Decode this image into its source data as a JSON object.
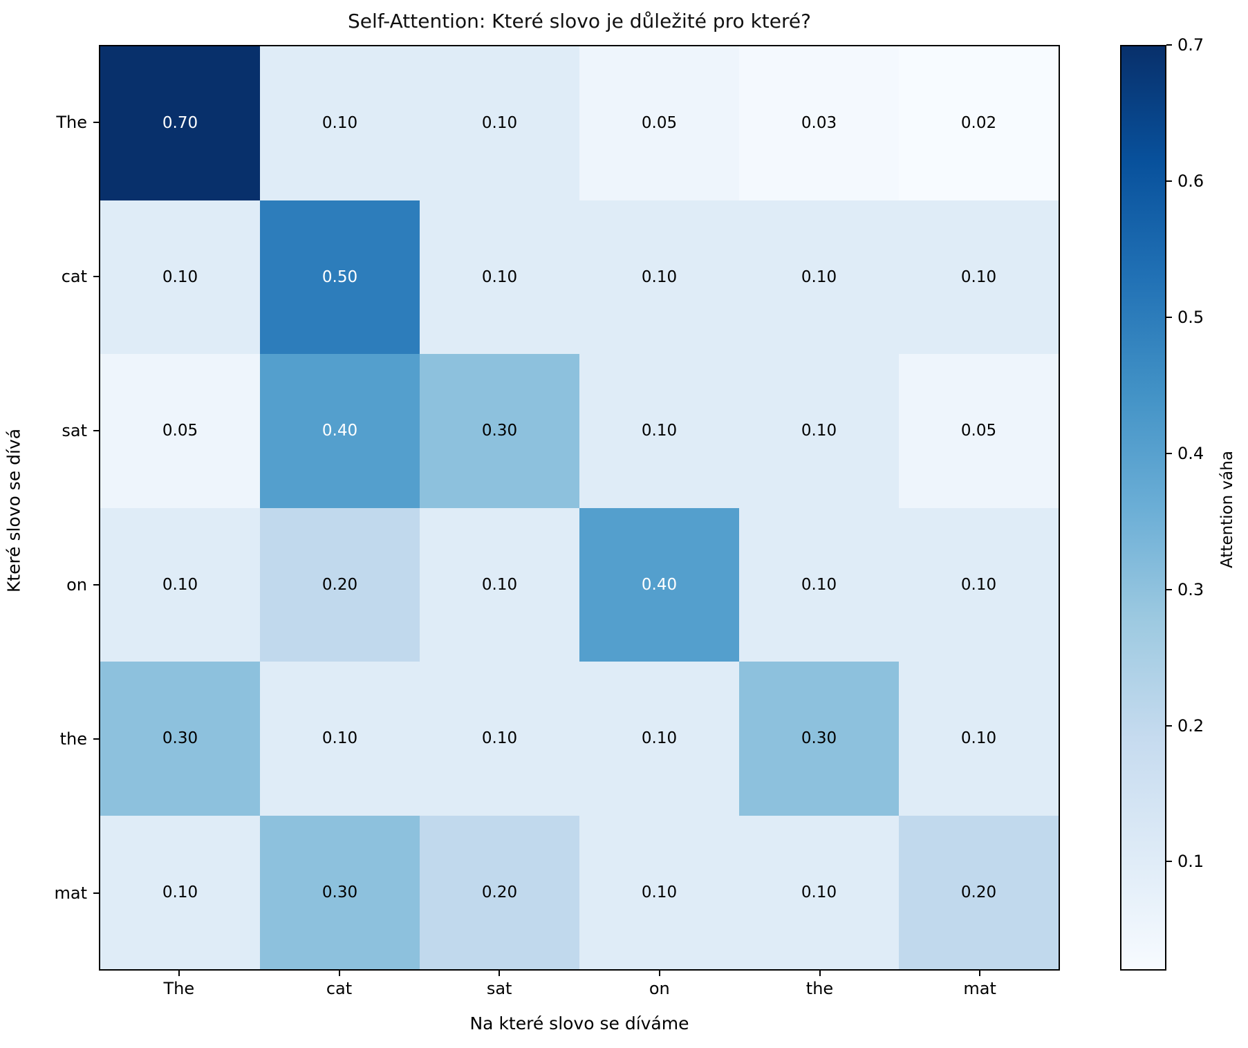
{
  "title": "Self-Attention: Které slovo je důležité pro které?",
  "chart_data": {
    "type": "heatmap",
    "title": "Self-Attention: Které slovo je důležité pro které?",
    "xlabel": "Na které slovo se díváme",
    "ylabel": "Které slovo se dívá",
    "x_categories": [
      "The",
      "cat",
      "sat",
      "on",
      "the",
      "mat"
    ],
    "y_categories": [
      "The",
      "cat",
      "sat",
      "on",
      "the",
      "mat"
    ],
    "values": [
      [
        0.7,
        0.1,
        0.1,
        0.05,
        0.03,
        0.02
      ],
      [
        0.1,
        0.5,
        0.1,
        0.1,
        0.1,
        0.1
      ],
      [
        0.05,
        0.4,
        0.3,
        0.1,
        0.1,
        0.05
      ],
      [
        0.1,
        0.2,
        0.1,
        0.4,
        0.1,
        0.1
      ],
      [
        0.3,
        0.1,
        0.1,
        0.1,
        0.3,
        0.1
      ],
      [
        0.1,
        0.3,
        0.2,
        0.1,
        0.1,
        0.2
      ]
    ],
    "vmin": 0.02,
    "vmax": 0.7,
    "grid": false,
    "colormap_name": "Blues",
    "colorbar_label": "Attention váha",
    "colorbar_ticks": [
      0.7,
      0.6,
      0.5,
      0.4,
      0.3,
      0.2,
      0.1
    ],
    "colorbar_gradient_stops": [
      {
        "pos": 0,
        "color": "#f7fbff"
      },
      {
        "pos": 12.5,
        "color": "#deebf7"
      },
      {
        "pos": 25,
        "color": "#c6dbef"
      },
      {
        "pos": 37.5,
        "color": "#9ecae1"
      },
      {
        "pos": 50,
        "color": "#6baed6"
      },
      {
        "pos": 62.5,
        "color": "#4292c6"
      },
      {
        "pos": 75,
        "color": "#2171b5"
      },
      {
        "pos": 87.5,
        "color": "#08519c"
      },
      {
        "pos": 100,
        "color": "#08306b"
      }
    ],
    "value_colors": {
      "0.02": "#f7fbff",
      "0.03": "#f4f9fe",
      "0.05": "#eef5fc",
      "0.10": "#dfecf7",
      "0.20": "#c1d9ed",
      "0.30": "#8dc1dd",
      "0.40": "#549fcd",
      "0.50": "#2d7dbb",
      "0.70": "#08306b"
    },
    "text_color_threshold": 0.35,
    "cell_text_light": "#ffffff",
    "cell_text_dark": "#000000",
    "axis_color": "#000000"
  }
}
